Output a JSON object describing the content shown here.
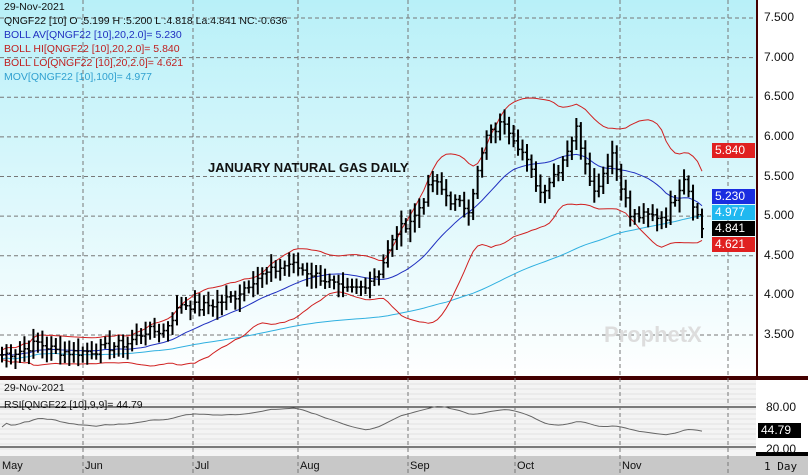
{
  "header": {
    "date": "29-Nov-2021",
    "quote": "QNGF22 [10] O :5.199 H :5.200 L :4.818 La:4.841 NC:-0.636",
    "boll_av": "BOLL AV[QNGF22 [10],20,2.0]= 5.230",
    "boll_hi": "BOLL HI[QNGF22 [10],20,2.0]= 5.840",
    "boll_lo": "BOLL LO[QNGF22 [10],20,2.0]= 4.621",
    "mov": "MOV[QNGF22 [10],100]= 4.977"
  },
  "rsi_header": {
    "date": "29-Nov-2021",
    "label": "RSI[QNGF22 [10],9,9]= 44.79"
  },
  "watermark": "ProphetX powered by DTN",
  "interval": "1 Day",
  "colors": {
    "price": "#000000",
    "boll_av": "#2030c0",
    "boll_band": "#d02020",
    "mov": "#30b0e0"
  },
  "chart_data": {
    "type": "line",
    "title": "JANUARY NATURAL GAS DAILY",
    "x_ticks": [
      "May",
      "Jun",
      "Jul",
      "Aug",
      "Sep",
      "Oct",
      "Nov"
    ],
    "y_ticks": [
      "7.500",
      "7.000",
      "6.500",
      "6.000",
      "5.500",
      "5.000",
      "4.500",
      "4.000",
      "3.500"
    ],
    "ylim": [
      3.1,
      7.7
    ],
    "weekly_closes": [
      3.25,
      3.3,
      3.4,
      3.3,
      3.28,
      3.3,
      3.35,
      3.4,
      3.55,
      3.55,
      3.9,
      3.85,
      3.9,
      4.0,
      4.2,
      4.3,
      4.4,
      4.3,
      4.2,
      4.05,
      4.1,
      4.3,
      4.8,
      5.0,
      5.45,
      5.2,
      5.1,
      6.0,
      6.2,
      5.8,
      5.3,
      5.6,
      6.1,
      5.3,
      5.8,
      5.0,
      5.0,
      5.0,
      5.5,
      4.841
    ],
    "last_values": {
      "boll_hi": "5.840",
      "boll_av": "5.230",
      "mov": "4.977",
      "last": "4.841",
      "boll_lo": "4.621"
    },
    "rsi": {
      "ticks": [
        "80.00",
        "20.00"
      ],
      "last": "44.79"
    }
  }
}
